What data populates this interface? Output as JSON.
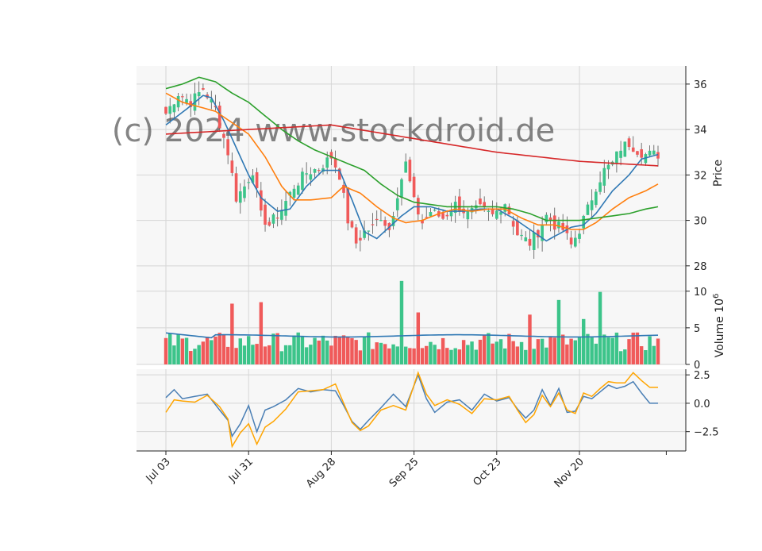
{
  "watermark": "(c) 2024 www.stockdroid.de",
  "colors": {
    "up": "#3cc48a",
    "down": "#f05a5a",
    "ma_short": "#2f78b4",
    "ma_mid": "#ff7f0e",
    "ma_long": "#2ca02c",
    "ma_200": "#d62728",
    "vol_avg": "#2f78b4",
    "ind_blue": "#4a7fb5",
    "ind_orange": "#ffa500",
    "grid": "#d6d6d6",
    "panel_bg": "#f7f7f7"
  },
  "chart_data": [
    {
      "type": "candlestick",
      "panel": "price",
      "ylabel": "Price",
      "ylim": [
        27.4,
        36.8
      ],
      "yticks": [
        28,
        30,
        32,
        34,
        36
      ],
      "x_tick_labels": [
        "Jul 03",
        "Jul 31",
        "Aug 28",
        "Sep 25",
        "Oct 23",
        "Nov 20"
      ],
      "x_tick_index": [
        0,
        20,
        40,
        60,
        80,
        100
      ],
      "n_bars": 120,
      "close_anchors": {
        "x": [
          0,
          3,
          6,
          9,
          12,
          15,
          17,
          19,
          21,
          23,
          25,
          28,
          31,
          34,
          37,
          40,
          42,
          44,
          46,
          48,
          50,
          52,
          54,
          56,
          58,
          60,
          62,
          64,
          67,
          70,
          73,
          76,
          79,
          82,
          85,
          88,
          90,
          92,
          94,
          96,
          98,
          100,
          102,
          104,
          106,
          108,
          110,
          112,
          114,
          116,
          119
        ],
        "y": [
          34.7,
          35.6,
          35.2,
          35.8,
          34.9,
          33.0,
          31.0,
          31.5,
          32.2,
          30.2,
          29.8,
          30.5,
          31.5,
          32.1,
          32.3,
          32.8,
          32.0,
          30.0,
          29.0,
          29.5,
          29.7,
          30.2,
          29.6,
          31.2,
          32.5,
          30.8,
          29.9,
          30.4,
          30.1,
          30.7,
          30.3,
          30.5,
          30.2,
          30.8,
          29.4,
          29.0,
          29.5,
          30.2,
          29.8,
          29.6,
          28.9,
          29.6,
          30.5,
          31.5,
          32.2,
          32.5,
          33.2,
          33.4,
          33.1,
          32.9,
          32.9
        ]
      },
      "ma_series": [
        {
          "key": "ma_short",
          "x": [
            0,
            5,
            9,
            11,
            14,
            17,
            20,
            23,
            27,
            30,
            34,
            38,
            42,
            45,
            48,
            51,
            54,
            57,
            60,
            64,
            68,
            72,
            76,
            80,
            84,
            88,
            92,
            95,
            98,
            101,
            104,
            108,
            112,
            115,
            119
          ],
          "y": [
            34.2,
            34.9,
            35.5,
            35.4,
            34.4,
            33.2,
            32.0,
            31.0,
            30.4,
            30.5,
            31.5,
            32.2,
            32.2,
            30.9,
            29.5,
            29.2,
            29.7,
            30.2,
            30.6,
            30.6,
            30.4,
            30.4,
            30.5,
            30.5,
            30.1,
            29.6,
            29.1,
            29.4,
            29.7,
            29.8,
            30.3,
            31.3,
            32.0,
            32.7,
            32.9
          ]
        },
        {
          "key": "ma_mid",
          "x": [
            0,
            4,
            8,
            12,
            16,
            20,
            24,
            28,
            31,
            35,
            40,
            43,
            47,
            51,
            55,
            58,
            62,
            66,
            70,
            74,
            78,
            82,
            86,
            90,
            94,
            98,
            101,
            104,
            108,
            112,
            116,
            119
          ],
          "y": [
            35.6,
            35.2,
            35.0,
            34.8,
            34.3,
            33.8,
            32.8,
            31.5,
            30.9,
            30.9,
            31.0,
            31.5,
            31.2,
            30.6,
            30.1,
            29.9,
            30.0,
            30.3,
            30.5,
            30.4,
            30.5,
            30.5,
            30.1,
            29.8,
            29.8,
            29.6,
            29.6,
            29.9,
            30.5,
            31.0,
            31.3,
            31.6
          ]
        },
        {
          "key": "ma_long",
          "x": [
            0,
            4,
            8,
            12,
            16,
            20,
            24,
            28,
            32,
            36,
            40,
            44,
            48,
            52,
            56,
            60,
            64,
            68,
            72,
            76,
            80,
            84,
            88,
            92,
            96,
            100,
            104,
            108,
            112,
            116,
            119
          ],
          "y": [
            35.8,
            36.0,
            36.3,
            36.1,
            35.6,
            35.2,
            34.6,
            34.0,
            33.5,
            33.1,
            32.8,
            32.5,
            32.2,
            31.6,
            31.1,
            30.8,
            30.7,
            30.6,
            30.6,
            30.6,
            30.6,
            30.5,
            30.3,
            30.0,
            30.0,
            30.0,
            30.1,
            30.2,
            30.3,
            30.5,
            30.6
          ]
        },
        {
          "key": "ma_200",
          "x": [
            0,
            20,
            40,
            60,
            80,
            100,
            119
          ],
          "y": [
            33.8,
            34.0,
            34.2,
            33.6,
            33.0,
            32.6,
            32.4
          ]
        }
      ]
    },
    {
      "type": "bar",
      "panel": "volume",
      "ylabel": "Volume  10^6",
      "ylim": [
        0,
        11.6
      ],
      "yticks": [
        0,
        5,
        10
      ],
      "spikes": {
        "index": [
          16,
          23,
          57,
          61,
          88,
          95,
          101,
          105
        ],
        "values": [
          8.3,
          8.5,
          11.4,
          7.1,
          6.8,
          8.8,
          6.2,
          9.9
        ]
      },
      "average": 3.9
    },
    {
      "type": "line",
      "panel": "indicator",
      "ylim": [
        -4.2,
        3.0
      ],
      "yticks": [
        -2.5,
        0.0,
        2.5
      ],
      "series": [
        {
          "key": "ind_blue",
          "x": [
            0,
            2,
            4,
            7,
            10,
            13,
            15,
            16,
            18,
            20,
            22,
            24,
            26,
            29,
            32,
            35,
            38,
            41,
            43,
            45,
            47,
            49,
            52,
            55,
            58,
            61,
            63,
            65,
            68,
            71,
            74,
            77,
            80,
            83,
            85,
            87,
            89,
            91,
            93,
            95,
            97,
            99,
            101,
            103,
            105,
            107,
            109,
            111,
            113,
            115,
            117,
            119
          ],
          "y": [
            0.5,
            1.2,
            0.4,
            0.6,
            0.8,
            -0.6,
            -1.5,
            -2.9,
            -1.8,
            -0.2,
            -2.5,
            -0.6,
            -0.3,
            0.3,
            1.3,
            1.0,
            1.2,
            1.1,
            -0.2,
            -1.6,
            -2.3,
            -1.5,
            -0.4,
            0.8,
            -0.3,
            2.5,
            0.4,
            -0.8,
            0.1,
            0.3,
            -0.6,
            0.8,
            0.2,
            0.5,
            -0.5,
            -1.3,
            -0.6,
            1.2,
            -0.2,
            1.3,
            -0.8,
            -0.7,
            0.6,
            0.4,
            1.0,
            1.6,
            1.3,
            1.5,
            1.9,
            0.9,
            0.0,
            0.0
          ]
        },
        {
          "key": "ind_orange",
          "x": [
            0,
            2,
            4,
            7,
            10,
            13,
            15,
            16,
            18,
            20,
            22,
            24,
            26,
            29,
            32,
            35,
            38,
            41,
            43,
            45,
            47,
            49,
            52,
            55,
            58,
            61,
            63,
            65,
            68,
            71,
            74,
            77,
            80,
            83,
            85,
            87,
            89,
            91,
            93,
            95,
            97,
            99,
            101,
            103,
            105,
            107,
            109,
            111,
            113,
            115,
            117,
            119
          ],
          "y": [
            -0.8,
            0.3,
            0.2,
            0.1,
            0.7,
            -0.3,
            -1.4,
            -3.8,
            -2.6,
            -1.8,
            -3.6,
            -2.1,
            -1.6,
            -0.5,
            1.0,
            1.1,
            1.2,
            1.7,
            0.0,
            -1.7,
            -2.4,
            -2.0,
            -0.6,
            -0.2,
            -0.6,
            2.7,
            0.8,
            -0.2,
            0.3,
            -0.1,
            -0.9,
            0.4,
            0.3,
            0.6,
            -0.6,
            -1.7,
            -1.0,
            0.7,
            -0.3,
            0.9,
            -0.6,
            -0.9,
            0.9,
            0.6,
            1.3,
            1.9,
            1.8,
            1.8,
            2.7,
            2.0,
            1.4,
            1.4
          ]
        }
      ]
    }
  ]
}
